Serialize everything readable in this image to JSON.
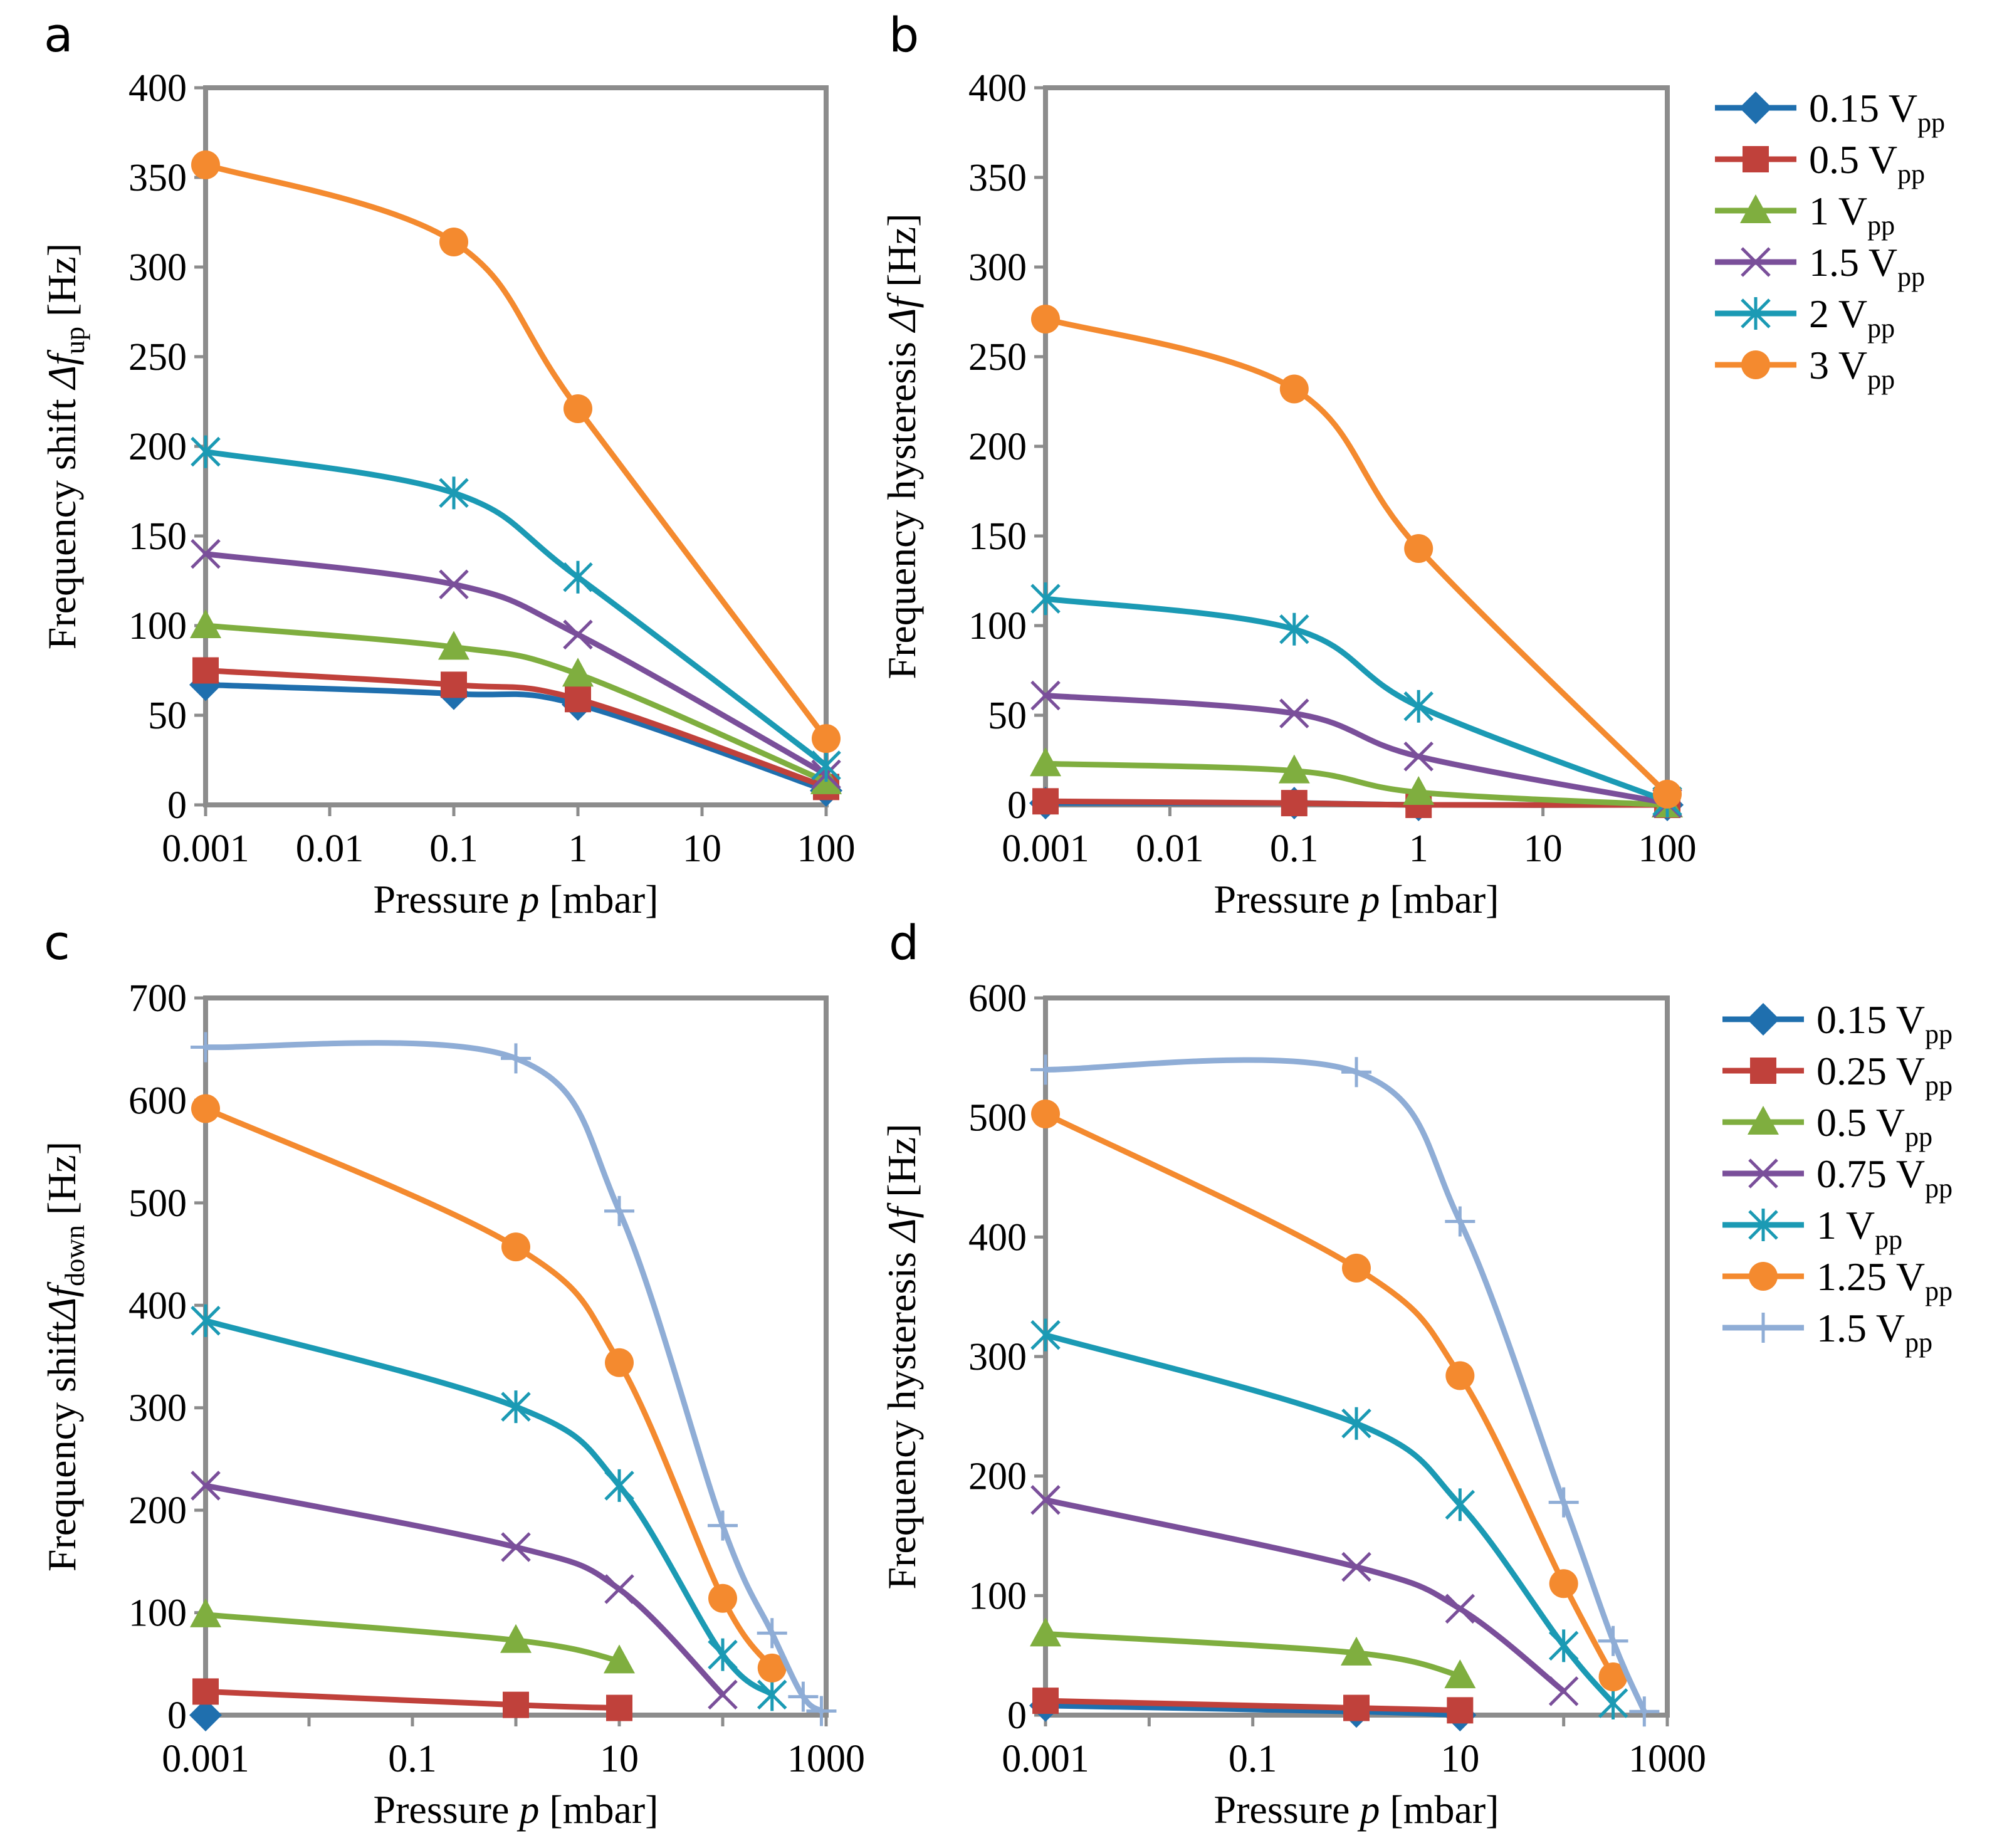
{
  "chart_data": [
    {
      "panel": "a",
      "type": "line",
      "xscale": "log",
      "xlim": [
        0.001,
        100
      ],
      "ylim": [
        0,
        400
      ],
      "xticks": [
        "0.001",
        "0.01",
        "0.1",
        "1",
        "10",
        "100"
      ],
      "yticks": [
        "0",
        "50",
        "100",
        "150",
        "200",
        "250",
        "300",
        "350",
        "400"
      ],
      "xlabel": {
        "prefix": "Pressure ",
        "var": "p",
        "suffix": " [mbar]"
      },
      "ylabel": {
        "prefix": "Frequency shift ",
        "sym": "Δ",
        "var": "f",
        "sub": "up",
        "suffix": " [Hz]"
      },
      "series": [
        {
          "name": "0.15 Vpp",
          "color": "#1F6FAE",
          "marker": "diamond",
          "x": [
            0.001,
            0.1,
            1,
            100
          ],
          "y": [
            67,
            62,
            56,
            8
          ]
        },
        {
          "name": "0.5 Vpp",
          "color": "#C0413B",
          "marker": "square",
          "x": [
            0.001,
            0.1,
            1,
            100
          ],
          "y": [
            75,
            67,
            59,
            10
          ]
        },
        {
          "name": "1 Vpp",
          "color": "#7FAE3F",
          "marker": "triangle",
          "x": [
            0.001,
            0.1,
            1,
            100
          ],
          "y": [
            100,
            88,
            73,
            13
          ]
        },
        {
          "name": "1.5 Vpp",
          "color": "#7A4F9A",
          "marker": "x",
          "x": [
            0.001,
            0.1,
            1,
            100
          ],
          "y": [
            140,
            123,
            95,
            17
          ]
        },
        {
          "name": "2 Vpp",
          "color": "#1B9AB4",
          "marker": "asterisk",
          "x": [
            0.001,
            0.1,
            1,
            100
          ],
          "y": [
            197,
            174,
            127,
            22
          ]
        },
        {
          "name": "3 Vpp",
          "color": "#F48A2F",
          "marker": "circle",
          "x": [
            0.001,
            0.1,
            1,
            100
          ],
          "y": [
            357,
            314,
            221,
            37
          ]
        }
      ]
    },
    {
      "panel": "b",
      "type": "line",
      "xscale": "log",
      "xlim": [
        0.001,
        100
      ],
      "ylim": [
        0,
        400
      ],
      "xticks": [
        "0.001",
        "0.01",
        "0.1",
        "1",
        "10",
        "100"
      ],
      "yticks": [
        "0",
        "50",
        "100",
        "150",
        "200",
        "250",
        "300",
        "350",
        "400"
      ],
      "xlabel": {
        "prefix": "Pressure ",
        "var": "p",
        "suffix": " [mbar]"
      },
      "ylabel": {
        "prefix": "Frequency hysteresis ",
        "sym": "Δ",
        "var": "f",
        "sub": "",
        "suffix": " [Hz]"
      },
      "series": [
        {
          "name": "0.15 Vpp",
          "color": "#1F6FAE",
          "marker": "diamond",
          "x": [
            0.001,
            0.1,
            1,
            100
          ],
          "y": [
            1,
            1,
            0,
            0
          ]
        },
        {
          "name": "0.5 Vpp",
          "color": "#C0413B",
          "marker": "square",
          "x": [
            0.001,
            0.1,
            1,
            100
          ],
          "y": [
            2,
            1,
            0,
            0
          ]
        },
        {
          "name": "1 Vpp",
          "color": "#7FAE3F",
          "marker": "triangle",
          "x": [
            0.001,
            0.1,
            1,
            100
          ],
          "y": [
            23,
            19,
            7,
            0
          ]
        },
        {
          "name": "1.5 Vpp",
          "color": "#7A4F9A",
          "marker": "x",
          "x": [
            0.001,
            0.1,
            1,
            100
          ],
          "y": [
            61,
            51,
            27,
            1
          ]
        },
        {
          "name": "2 Vpp",
          "color": "#1B9AB4",
          "marker": "asterisk",
          "x": [
            0.001,
            0.1,
            1,
            100
          ],
          "y": [
            115,
            98,
            55,
            2
          ]
        },
        {
          "name": "3 Vpp",
          "color": "#F48A2F",
          "marker": "circle",
          "x": [
            0.001,
            0.1,
            1,
            100
          ],
          "y": [
            271,
            232,
            143,
            6
          ]
        }
      ]
    },
    {
      "panel": "c",
      "type": "line",
      "xscale": "log",
      "xlim": [
        0.001,
        1000
      ],
      "ylim": [
        0,
        700
      ],
      "xticks": [
        "0.001",
        "0.1",
        "10",
        "1000"
      ],
      "yticks": [
        "0",
        "100",
        "200",
        "300",
        "400",
        "500",
        "600",
        "700"
      ],
      "xlabel": {
        "prefix": "Pressure ",
        "var": "p",
        "suffix": " [mbar]"
      },
      "ylabel": {
        "prefix": "Frequency shift",
        "sym": "Δ",
        "var": "f",
        "sub": "down",
        "suffix": " [Hz]"
      },
      "series": [
        {
          "name": "0.15 Vpp",
          "color": "#1F6FAE",
          "marker": "diamond",
          "x": [
            0.001
          ],
          "y": [
            0
          ]
        },
        {
          "name": "0.25 Vpp",
          "color": "#C0413B",
          "marker": "square",
          "x": [
            0.001,
            1,
            10
          ],
          "y": [
            23,
            10,
            7
          ]
        },
        {
          "name": "0.5 Vpp",
          "color": "#7FAE3F",
          "marker": "triangle",
          "x": [
            0.001,
            1,
            10
          ],
          "y": [
            98,
            73,
            53
          ]
        },
        {
          "name": "0.75 Vpp",
          "color": "#7A4F9A",
          "marker": "x",
          "x": [
            0.001,
            1,
            10,
            100
          ],
          "y": [
            224,
            164,
            123,
            20
          ]
        },
        {
          "name": "1 Vpp",
          "color": "#1B9AB4",
          "marker": "asterisk",
          "x": [
            0.001,
            1,
            10,
            100,
            300
          ],
          "y": [
            385,
            301,
            224,
            59,
            20
          ]
        },
        {
          "name": "1.25 Vpp",
          "color": "#F48A2F",
          "marker": "circle",
          "x": [
            0.001,
            1,
            10,
            100,
            300
          ],
          "y": [
            592,
            457,
            344,
            114,
            46
          ]
        },
        {
          "name": "1.5 Vpp",
          "color": "#8FADD6",
          "marker": "plus",
          "x": [
            0.001,
            1,
            10,
            100,
            300,
            600,
            900
          ],
          "y": [
            652,
            641,
            492,
            185,
            80,
            18,
            4
          ]
        }
      ]
    },
    {
      "panel": "d",
      "type": "line",
      "xscale": "log",
      "xlim": [
        0.001,
        1000
      ],
      "ylim": [
        0,
        600
      ],
      "xticks": [
        "0.001",
        "0.1",
        "10",
        "1000"
      ],
      "yticks": [
        "0",
        "100",
        "200",
        "300",
        "400",
        "500",
        "600"
      ],
      "xlabel": {
        "prefix": "Pressure ",
        "var": "p",
        "suffix": " [mbar]"
      },
      "ylabel": {
        "prefix": "Frequency hysteresis ",
        "sym": "Δ",
        "var": "f",
        "sub": "",
        "suffix": " [Hz]"
      },
      "series": [
        {
          "name": "0.15 Vpp",
          "color": "#1F6FAE",
          "marker": "diamond",
          "x": [
            0.001,
            1,
            10
          ],
          "y": [
            8,
            3,
            0
          ]
        },
        {
          "name": "0.25 Vpp",
          "color": "#C0413B",
          "marker": "square",
          "x": [
            0.001,
            1,
            10
          ],
          "y": [
            12,
            6,
            4
          ]
        },
        {
          "name": "0.5 Vpp",
          "color": "#7FAE3F",
          "marker": "triangle",
          "x": [
            0.001,
            1,
            10
          ],
          "y": [
            68,
            52,
            33
          ]
        },
        {
          "name": "0.75 Vpp",
          "color": "#7A4F9A",
          "marker": "x",
          "x": [
            0.001,
            1,
            10,
            100
          ],
          "y": [
            180,
            124,
            89,
            20
          ]
        },
        {
          "name": "1 Vpp",
          "color": "#1B9AB4",
          "marker": "asterisk",
          "x": [
            0.001,
            1,
            10,
            100,
            300
          ],
          "y": [
            318,
            244,
            176,
            58,
            10
          ]
        },
        {
          "name": "1.25 Vpp",
          "color": "#F48A2F",
          "marker": "circle",
          "x": [
            0.001,
            1,
            10,
            100,
            300
          ],
          "y": [
            503,
            374,
            284,
            110,
            32
          ]
        },
        {
          "name": "1.5 Vpp",
          "color": "#8FADD6",
          "marker": "plus",
          "x": [
            0.001,
            1,
            10,
            100,
            300,
            600
          ],
          "y": [
            540,
            538,
            413,
            178,
            62,
            3
          ]
        }
      ]
    }
  ],
  "legends": {
    "top": [
      "0.15 V|pp",
      "0.5 V|pp",
      "1 V|pp",
      "1.5 V|pp",
      "2 V|pp",
      "3 V|pp"
    ],
    "bottom": [
      "0.15 V|pp",
      "0.25 V|pp",
      "0.5 V|pp",
      "0.75 V|pp",
      "1 V|pp",
      "1.25 V|pp",
      "1.5 V|pp"
    ]
  },
  "panel_letters": [
    "a",
    "b",
    "c",
    "d"
  ]
}
